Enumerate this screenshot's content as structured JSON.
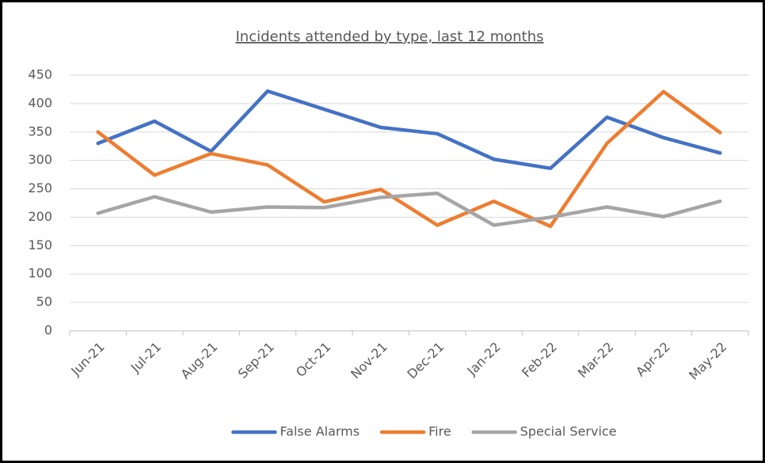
{
  "chart_data": {
    "type": "line",
    "title": "Incidents attended by type, last 12 months",
    "categories": [
      "Jun-21",
      "Jul-21",
      "Aug-21",
      "Sep-21",
      "Oct-21",
      "Nov-21",
      "Dec-21",
      "Jan-22",
      "Feb-22",
      "Mar-22",
      "Apr-22",
      "May-22"
    ],
    "series": [
      {
        "name": "False Alarms",
        "color": "#4472c4",
        "values": [
          330,
          369,
          316,
          422,
          390,
          358,
          347,
          302,
          286,
          376,
          340,
          313
        ]
      },
      {
        "name": "Fire",
        "color": "#ed7d31",
        "values": [
          350,
          274,
          312,
          292,
          227,
          249,
          186,
          228,
          184,
          330,
          421,
          349
        ]
      },
      {
        "name": "Special Service",
        "color": "#a5a5a5",
        "values": [
          207,
          236,
          209,
          218,
          217,
          235,
          242,
          186,
          200,
          218,
          201,
          228
        ]
      }
    ],
    "ylim": [
      0,
      450
    ],
    "yticks": [
      0,
      50,
      100,
      150,
      200,
      250,
      300,
      350,
      400,
      450
    ],
    "grid": true,
    "legend": "bottom"
  }
}
